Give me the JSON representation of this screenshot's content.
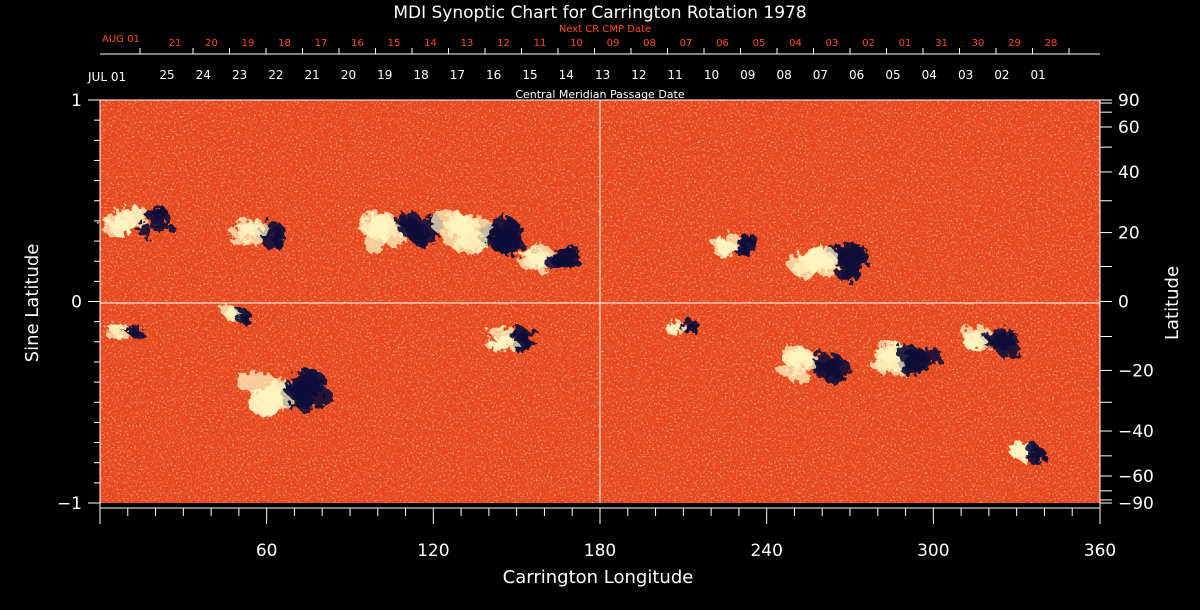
{
  "chart_data": {
    "type": "heatmap",
    "title": "MDI Synoptic Chart for Carrington Rotation 1978",
    "xlabel": "Carrington Longitude",
    "ylabel_left": "Sine Latitude",
    "ylabel_right": "Latitude",
    "xlim": [
      0,
      360
    ],
    "ylim": [
      -1,
      1
    ],
    "x_ticks": [
      60,
      120,
      180,
      240,
      300,
      360
    ],
    "y_ticks_left": [
      -1,
      0,
      1
    ],
    "y_ticks_right": [
      -90,
      -60,
      -40,
      -20,
      0,
      20,
      40,
      60,
      90
    ],
    "top_axis_label": "Central Meridian Passage Date",
    "top_axis_start": "JUL 01",
    "top_axis_ticks": [
      "25",
      "24",
      "23",
      "22",
      "21",
      "20",
      "19",
      "18",
      "17",
      "16",
      "15",
      "14",
      "13",
      "12",
      "11",
      "10",
      "09",
      "08",
      "07",
      "06",
      "05",
      "04",
      "03",
      "02",
      "01"
    ],
    "next_axis_label": "Next CR CMP Date",
    "next_axis_start": "AUG 01",
    "next_axis_ticks": [
      "21",
      "20",
      "19",
      "18",
      "17",
      "16",
      "15",
      "14",
      "13",
      "12",
      "11",
      "10",
      "09",
      "08",
      "07",
      "06",
      "05",
      "04",
      "03",
      "02",
      "01",
      "31",
      "30",
      "29",
      "28"
    ],
    "grid": "crosshair at longitude 180 and latitude 0",
    "colors": {
      "background_field": "#e8481c",
      "positive_polarity": "#fff4c0",
      "negative_polarity": "#0c0c3a",
      "axes": "#ffffff",
      "next_axis": "#ff4a1a"
    },
    "active_regions": [
      {
        "lon": 68,
        "lat": -0.45,
        "polarity": "mixed",
        "strength": 1.0
      },
      {
        "lon": 110,
        "lat": 0.35,
        "polarity": "mixed",
        "strength": 0.9
      },
      {
        "lon": 138,
        "lat": 0.33,
        "polarity": "mixed",
        "strength": 1.0
      },
      {
        "lon": 163,
        "lat": 0.23,
        "polarity": "mixed",
        "strength": 0.7
      },
      {
        "lon": 58,
        "lat": 0.33,
        "polarity": "mixed",
        "strength": 0.6
      },
      {
        "lon": 15,
        "lat": 0.4,
        "polarity": "mixed",
        "strength": 0.7
      },
      {
        "lon": 150,
        "lat": -0.18,
        "polarity": "mixed",
        "strength": 0.6
      },
      {
        "lon": 265,
        "lat": 0.2,
        "polarity": "mixed",
        "strength": 0.9
      },
      {
        "lon": 258,
        "lat": -0.32,
        "polarity": "mixed",
        "strength": 0.8
      },
      {
        "lon": 290,
        "lat": -0.3,
        "polarity": "mixed",
        "strength": 0.8
      },
      {
        "lon": 320,
        "lat": -0.2,
        "polarity": "mixed",
        "strength": 0.7
      },
      {
        "lon": 230,
        "lat": 0.28,
        "polarity": "mixed",
        "strength": 0.5
      },
      {
        "lon": 335,
        "lat": -0.76,
        "polarity": "mixed",
        "strength": 0.5
      },
      {
        "lon": 10,
        "lat": -0.15,
        "polarity": "mixed",
        "strength": 0.4
      },
      {
        "lon": 50,
        "lat": -0.07,
        "polarity": "mixed",
        "strength": 0.4
      },
      {
        "lon": 210,
        "lat": -0.12,
        "polarity": "mixed",
        "strength": 0.4
      }
    ]
  }
}
